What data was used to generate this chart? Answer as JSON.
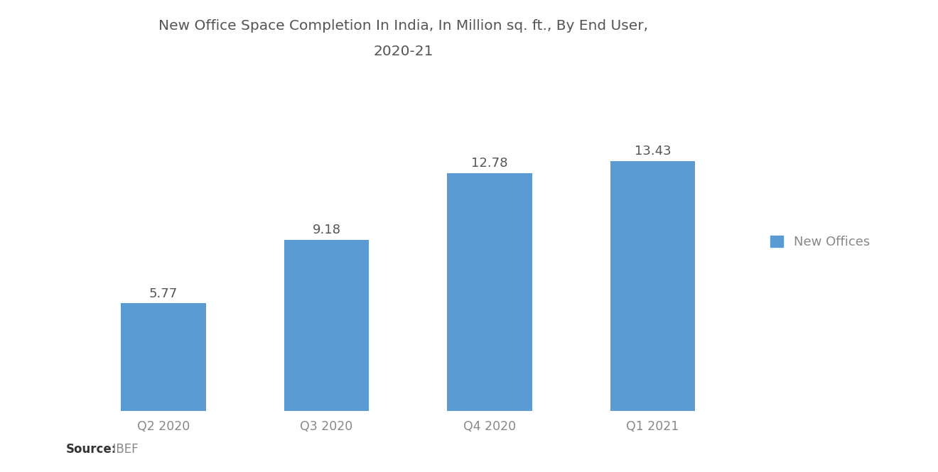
{
  "title_line1": "New Office Space Completion In India, In Million sq. ft., By End User,",
  "title_line2": "2020-21",
  "categories": [
    "Q2 2020",
    "Q3 2020",
    "Q4 2020",
    "Q1 2021"
  ],
  "values": [
    5.77,
    9.18,
    12.78,
    13.43
  ],
  "bar_color": "#5B9BD5",
  "value_labels": [
    "5.77",
    "9.18",
    "12.78",
    "13.43"
  ],
  "legend_label": "New Offices",
  "legend_color": "#5B9BD5",
  "source_label": "Source:",
  "source_value": "  IBEF",
  "ylim": [
    0,
    16.5
  ],
  "background_color": "#FFFFFF",
  "title_fontsize": 14.5,
  "label_fontsize": 13,
  "tick_fontsize": 12.5,
  "source_fontsize": 12,
  "value_label_color": "#555555",
  "tick_label_color": "#888888"
}
